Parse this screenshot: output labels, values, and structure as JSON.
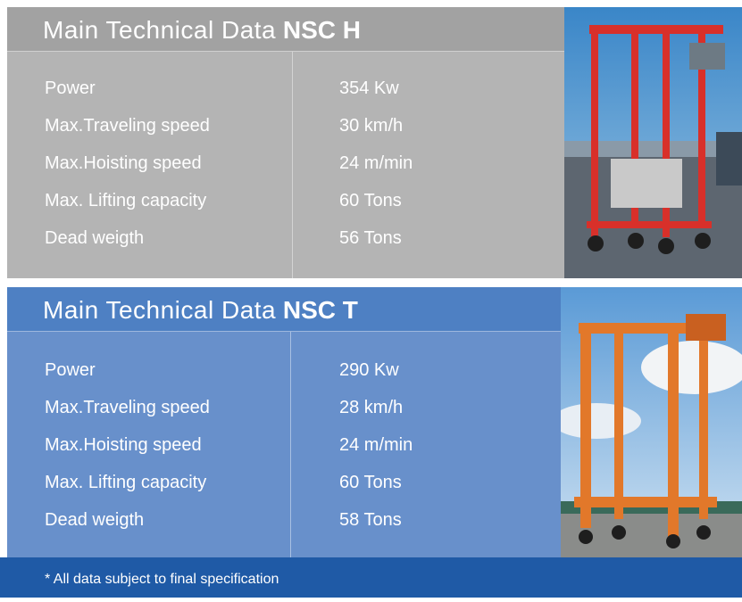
{
  "panels": [
    {
      "title": "Main Technical Data",
      "model": "NSC H",
      "rows": [
        [
          "Power",
          "354 Kw"
        ],
        [
          "Max.Traveling speed",
          "30 km/h"
        ],
        [
          "Max.Hoisting speed",
          "24 m/min"
        ],
        [
          "Max. Lifting capacity",
          "60 Tons"
        ],
        [
          "Dead weigth",
          "56 Tons"
        ]
      ]
    },
    {
      "title": "Main Technical Data",
      "model": "NSC T",
      "rows": [
        [
          "Power",
          "290 Kw"
        ],
        [
          "Max.Traveling speed",
          "28 km/h"
        ],
        [
          "Max.Hoisting speed",
          "24 m/min"
        ],
        [
          "Max. Lifting capacity",
          "60 Tons"
        ],
        [
          "Dead weigth",
          "58 Tons"
        ]
      ]
    }
  ],
  "footer": "* All data subject to final specification"
}
